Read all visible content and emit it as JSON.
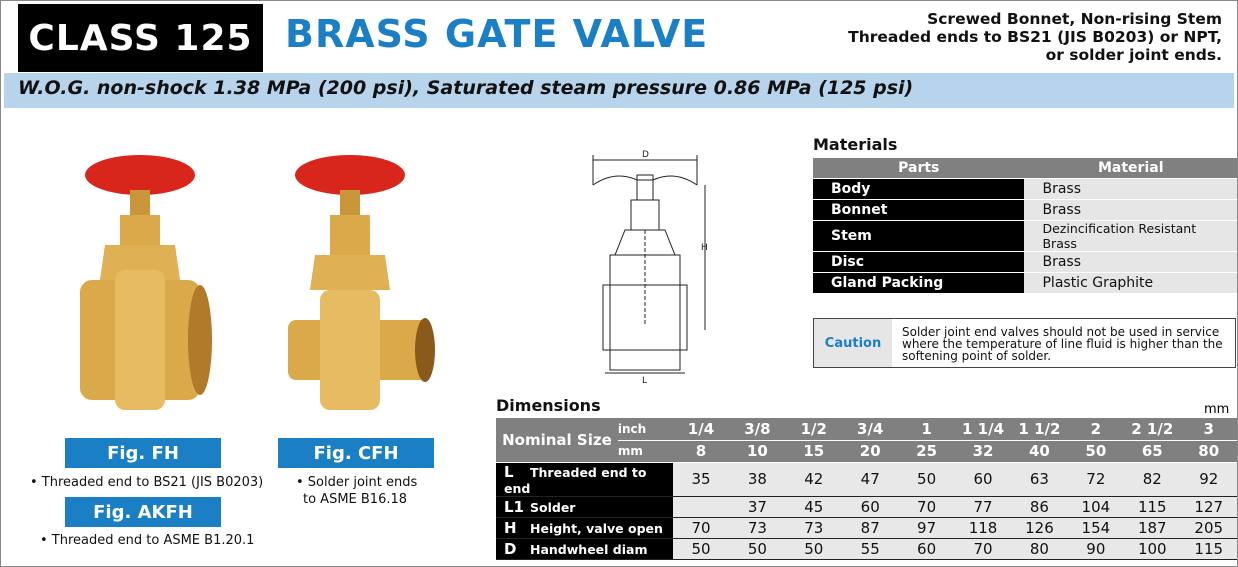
{
  "header": {
    "class_label": "CLASS 125",
    "title": "BRASS GATE VALVE",
    "subtitle_lines": [
      "Screwed Bonnet, Non-rising Stem",
      "Threaded ends to BS21 (JIS B0203) or NPT,",
      "or solder joint ends."
    ]
  },
  "rating": "W.O.G. non-shock 1.38 MPa (200 psi), Saturated steam pressure 0.86 MPa (125 psi)",
  "figures": [
    {
      "label": "Fig. FH",
      "note": "• Threaded end to BS21 (JIS B0203)"
    },
    {
      "label": "Fig. CFH",
      "note_lines": [
        "• Solder joint ends",
        "to ASME B16.18"
      ]
    },
    {
      "label": "Fig. AKFH",
      "note": "• Threaded end to ASME B1.20.1"
    }
  ],
  "drawing": {
    "labels": {
      "d": "D",
      "h": "H",
      "l": "L"
    }
  },
  "materials": {
    "title": "Materials",
    "headers": [
      "Parts",
      "Material"
    ],
    "rows": [
      [
        "Body",
        "Brass"
      ],
      [
        "Bonnet",
        "Brass"
      ],
      [
        "Stem",
        "Dezincification Resistant Brass"
      ],
      [
        "Disc",
        "Brass"
      ],
      [
        "Gland Packing",
        "Plastic Graphite"
      ]
    ]
  },
  "caution": {
    "label": "Caution",
    "text": "Solder joint end valves should not be used in service where the temperature of line fluid is higher than the softening point of solder."
  },
  "dimensions": {
    "title": "Dimensions",
    "unit": "mm",
    "nominal_label": "Nominal Size",
    "inch_label": "inch",
    "mm_label": "mm",
    "inch": [
      "1/4",
      "3/8",
      "1/2",
      "3/4",
      "1",
      "1 1/4",
      "1 1/2",
      "2",
      "2 1/2",
      "3"
    ],
    "mm": [
      "8",
      "10",
      "15",
      "20",
      "25",
      "32",
      "40",
      "50",
      "65",
      "80"
    ],
    "rows": [
      {
        "code": "L",
        "name": "Threaded end to end",
        "values": [
          "35",
          "38",
          "42",
          "47",
          "50",
          "60",
          "63",
          "72",
          "82",
          "92"
        ]
      },
      {
        "code": "L1",
        "name": "Solder",
        "values": [
          "",
          "37",
          "45",
          "60",
          "70",
          "77",
          "86",
          "104",
          "115",
          "127"
        ]
      },
      {
        "code": "H",
        "name": "Height, valve open",
        "values": [
          "70",
          "73",
          "73",
          "87",
          "97",
          "118",
          "126",
          "154",
          "187",
          "205"
        ]
      },
      {
        "code": "D",
        "name": "Handwheel diam",
        "values": [
          "50",
          "50",
          "50",
          "55",
          "60",
          "70",
          "80",
          "90",
          "100",
          "115"
        ]
      }
    ]
  },
  "colors": {
    "accent": "#1a7fc4",
    "band": "#b8d4ec",
    "header_gray": "#808080",
    "handwheel": "#d9261c",
    "brass": "#d9a94a"
  }
}
